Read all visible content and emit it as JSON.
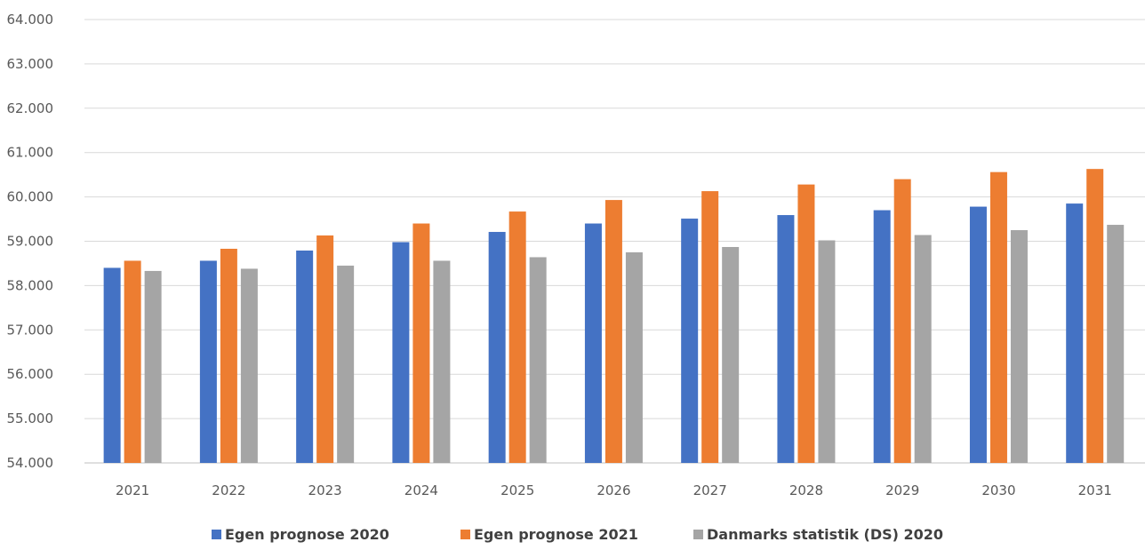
{
  "chart_data": {
    "type": "bar",
    "title": "",
    "xlabel": "",
    "ylabel": "",
    "categories": [
      "2021",
      "2022",
      "2023",
      "2024",
      "2025",
      "2026",
      "2027",
      "2028",
      "2029",
      "2030",
      "2031"
    ],
    "series": [
      {
        "name": "Egen prognose 2020",
        "color": "#4472C4",
        "values": [
          58400,
          58560,
          58790,
          58980,
          59210,
          59400,
          59510,
          59590,
          59700,
          59780,
          59850
        ]
      },
      {
        "name": "Egen prognose 2021",
        "color": "#ED7D31",
        "values": [
          58560,
          58830,
          59130,
          59400,
          59670,
          59930,
          60130,
          60280,
          60400,
          60560,
          60630
        ]
      },
      {
        "name": "Danmarks statistik (DS) 2020",
        "color": "#A5A5A5",
        "values": [
          58330,
          58380,
          58450,
          58560,
          58640,
          58750,
          58870,
          59020,
          59140,
          59250,
          59370
        ]
      }
    ],
    "ylim": [
      54000,
      64000
    ],
    "yticks": [
      54000,
      55000,
      56000,
      57000,
      58000,
      59000,
      60000,
      61000,
      62000,
      63000,
      64000
    ],
    "ytick_labels": [
      "54.000",
      "55.000",
      "56.000",
      "57.000",
      "58.000",
      "59.000",
      "60.000",
      "61.000",
      "62.000",
      "63.000",
      "64.000"
    ],
    "grid": true,
    "legend_position": "bottom-center"
  }
}
